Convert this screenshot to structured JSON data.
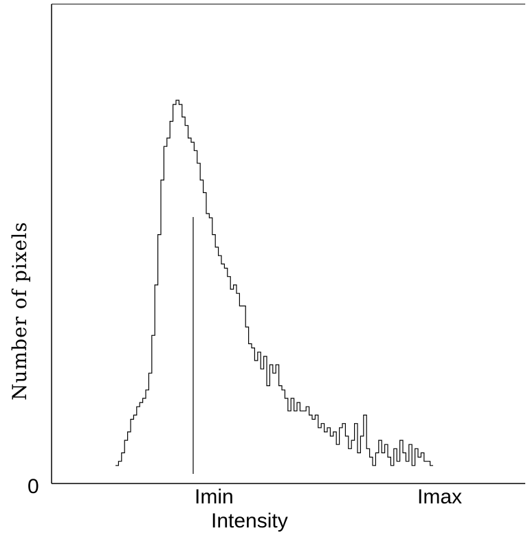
{
  "chart_data": {
    "type": "line",
    "xlabel": "Intensity",
    "ylabel": "Number of pixels",
    "y_zero_label": "0",
    "x_tick_labels": [
      "Imin",
      "Imax"
    ],
    "xlim": [
      0,
      120
    ],
    "ylim": [
      0,
      100
    ],
    "grid": false,
    "legend": "none",
    "step": true,
    "marker": {
      "x": 35,
      "label": "Imin"
    },
    "series": [
      {
        "values": [
          {
            "x": 16,
            "y": 2
          },
          {
            "x": 17,
            "y": 3
          },
          {
            "x": 18,
            "y": 5
          },
          {
            "x": 19,
            "y": 8
          },
          {
            "x": 20,
            "y": 10
          },
          {
            "x": 21,
            "y": 13
          },
          {
            "x": 22,
            "y": 14
          },
          {
            "x": 23,
            "y": 16
          },
          {
            "x": 24,
            "y": 17
          },
          {
            "x": 25,
            "y": 18
          },
          {
            "x": 26,
            "y": 20
          },
          {
            "x": 27,
            "y": 24
          },
          {
            "x": 28,
            "y": 33
          },
          {
            "x": 29,
            "y": 45
          },
          {
            "x": 30,
            "y": 57
          },
          {
            "x": 31,
            "y": 70
          },
          {
            "x": 32,
            "y": 78
          },
          {
            "x": 33,
            "y": 80
          },
          {
            "x": 34,
            "y": 84
          },
          {
            "x": 35,
            "y": 88
          },
          {
            "x": 36,
            "y": 89
          },
          {
            "x": 37,
            "y": 88
          },
          {
            "x": 38,
            "y": 85
          },
          {
            "x": 39,
            "y": 83
          },
          {
            "x": 40,
            "y": 80
          },
          {
            "x": 41,
            "y": 79
          },
          {
            "x": 42,
            "y": 77
          },
          {
            "x": 43,
            "y": 74
          },
          {
            "x": 44,
            "y": 70
          },
          {
            "x": 45,
            "y": 67
          },
          {
            "x": 46,
            "y": 62
          },
          {
            "x": 47,
            "y": 61
          },
          {
            "x": 48,
            "y": 57
          },
          {
            "x": 49,
            "y": 54
          },
          {
            "x": 50,
            "y": 52
          },
          {
            "x": 51,
            "y": 50
          },
          {
            "x": 52,
            "y": 49
          },
          {
            "x": 53,
            "y": 47
          },
          {
            "x": 54,
            "y": 44
          },
          {
            "x": 55,
            "y": 45
          },
          {
            "x": 56,
            "y": 43
          },
          {
            "x": 57,
            "y": 40
          },
          {
            "x": 58,
            "y": 40
          },
          {
            "x": 59,
            "y": 35
          },
          {
            "x": 60,
            "y": 31
          },
          {
            "x": 61,
            "y": 30
          },
          {
            "x": 62,
            "y": 27
          },
          {
            "x": 63,
            "y": 29
          },
          {
            "x": 64,
            "y": 25
          },
          {
            "x": 65,
            "y": 28
          },
          {
            "x": 66,
            "y": 21
          },
          {
            "x": 67,
            "y": 26
          },
          {
            "x": 68,
            "y": 24
          },
          {
            "x": 69,
            "y": 26
          },
          {
            "x": 70,
            "y": 21
          },
          {
            "x": 71,
            "y": 20
          },
          {
            "x": 72,
            "y": 18
          },
          {
            "x": 73,
            "y": 15
          },
          {
            "x": 74,
            "y": 18
          },
          {
            "x": 75,
            "y": 15
          },
          {
            "x": 76,
            "y": 17
          },
          {
            "x": 77,
            "y": 15
          },
          {
            "x": 78,
            "y": 15
          },
          {
            "x": 79,
            "y": 16
          },
          {
            "x": 80,
            "y": 14
          },
          {
            "x": 81,
            "y": 13
          },
          {
            "x": 82,
            "y": 14
          },
          {
            "x": 83,
            "y": 11
          },
          {
            "x": 84,
            "y": 12
          },
          {
            "x": 85,
            "y": 10
          },
          {
            "x": 86,
            "y": 11
          },
          {
            "x": 87,
            "y": 9
          },
          {
            "x": 88,
            "y": 10
          },
          {
            "x": 89,
            "y": 7
          },
          {
            "x": 90,
            "y": 11
          },
          {
            "x": 91,
            "y": 12
          },
          {
            "x": 92,
            "y": 9
          },
          {
            "x": 93,
            "y": 6
          },
          {
            "x": 94,
            "y": 8
          },
          {
            "x": 95,
            "y": 12
          },
          {
            "x": 96,
            "y": 5
          },
          {
            "x": 97,
            "y": 9
          },
          {
            "x": 98,
            "y": 14
          },
          {
            "x": 99,
            "y": 6
          },
          {
            "x": 100,
            "y": 4
          },
          {
            "x": 101,
            "y": 2
          },
          {
            "x": 102,
            "y": 5
          },
          {
            "x": 103,
            "y": 8
          },
          {
            "x": 104,
            "y": 5
          },
          {
            "x": 105,
            "y": 7
          },
          {
            "x": 106,
            "y": 4
          },
          {
            "x": 107,
            "y": 2
          },
          {
            "x": 108,
            "y": 6
          },
          {
            "x": 109,
            "y": 3
          },
          {
            "x": 110,
            "y": 8
          },
          {
            "x": 111,
            "y": 5
          },
          {
            "x": 112,
            "y": 3
          },
          {
            "x": 113,
            "y": 7
          },
          {
            "x": 114,
            "y": 2
          },
          {
            "x": 115,
            "y": 6
          },
          {
            "x": 116,
            "y": 4
          },
          {
            "x": 117,
            "y": 5
          },
          {
            "x": 118,
            "y": 3
          },
          {
            "x": 119,
            "y": 3
          },
          {
            "x": 120,
            "y": 2
          }
        ]
      }
    ]
  }
}
